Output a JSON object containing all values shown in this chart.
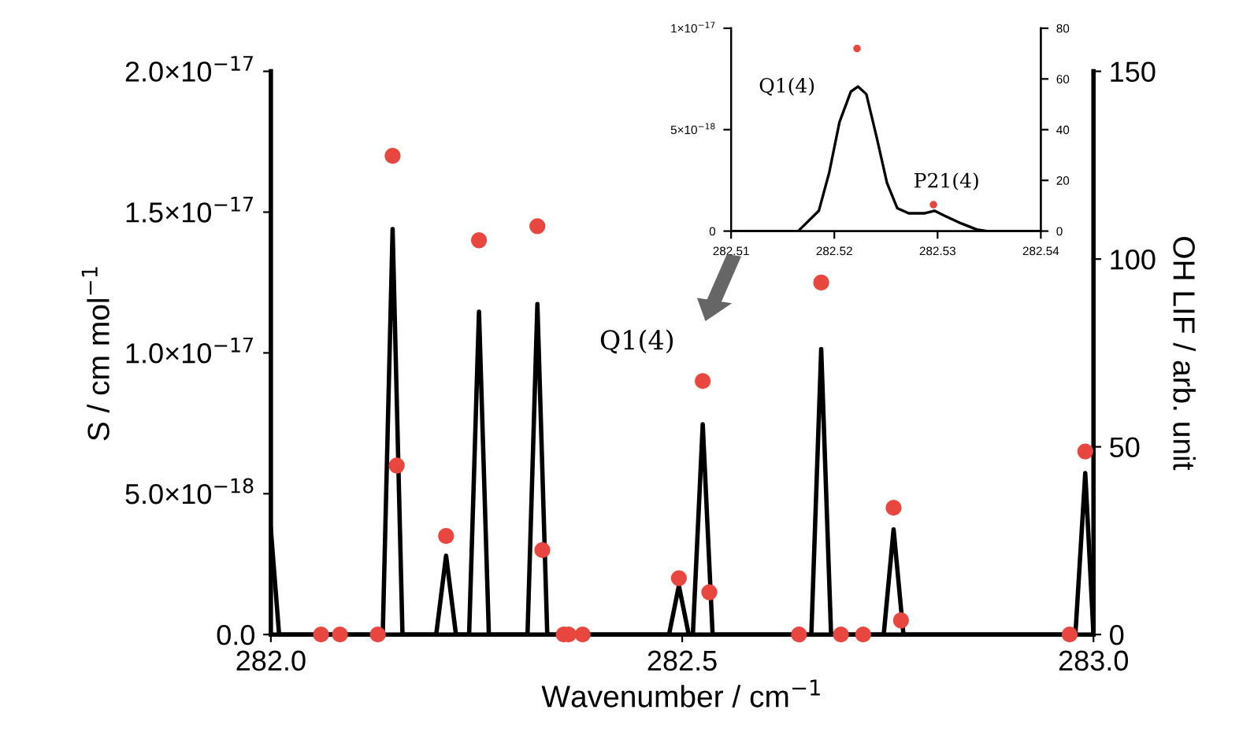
{
  "chart_data": [
    {
      "type": "scatter",
      "xlabel": "Wavenumber / cm$^{−1}$",
      "ylabel": "S / cm mol$^{−1}$",
      "y2label": "OH LIF / arb. unit",
      "xlim": [
        282.0,
        283.0
      ],
      "xticks": [
        {
          "value": 282.0,
          "label": "282.0"
        },
        {
          "value": 282.5,
          "label": "282.5"
        },
        {
          "value": 283.0,
          "label": "283.0"
        }
      ],
      "ylim": [
        0,
        2e-17
      ],
      "yticks": [
        {
          "value": 0,
          "label": "0.0"
        },
        {
          "value": 5e-18,
          "label": "5.0×10$^{−18}$"
        },
        {
          "value": 1e-17,
          "label": "1.0×10$^{−17}$"
        },
        {
          "value": 1.5e-17,
          "label": "1.5×10$^{−17}$"
        },
        {
          "value": 2e-17,
          "label": "2.0×10$^{−17}$"
        }
      ],
      "y2lim": [
        0,
        150
      ],
      "y2ticks": [
        0,
        50,
        100,
        150
      ],
      "grid": false,
      "legend": false,
      "series": [
        {
          "color": "#e8473f",
          "marker": "circle",
          "x": [
            282.061,
            282.084,
            282.13,
            282.148,
            282.153,
            282.213,
            282.253,
            282.324,
            282.33,
            282.356,
            282.362,
            282.379,
            282.496,
            282.525,
            282.533,
            282.642,
            282.669,
            282.693,
            282.72,
            282.757,
            282.766,
            282.971,
            282.99
          ],
          "values": [
            0,
            0,
            0,
            1.7e-17,
            6e-18,
            3.5e-18,
            1.4e-17,
            1.45e-17,
            3e-18,
            0,
            0,
            0,
            2e-18,
            9e-18,
            1.5e-18,
            0,
            1.25e-17,
            0,
            0,
            4.5e-18,
            5e-19,
            0,
            6.5e-18
          ]
        },
        {
          "type": "line",
          "axis": "y2",
          "color": "#000000",
          "marker": "none",
          "line_style": "solid",
          "x": [
            282.0,
            282.01,
            282.136,
            282.148,
            282.16,
            282.201,
            282.213,
            282.225,
            282.241,
            282.253,
            282.265,
            282.312,
            282.324,
            282.336,
            282.484,
            282.496,
            282.508,
            282.513,
            282.525,
            282.537,
            282.657,
            282.669,
            282.681,
            282.745,
            282.757,
            282.769,
            282.978,
            282.99,
            283.0
          ],
          "values": [
            28,
            0,
            0,
            108,
            0,
            0,
            21,
            0,
            0,
            86,
            0,
            0,
            88,
            0,
            0,
            13,
            0,
            0,
            56,
            0,
            0,
            76,
            0,
            0,
            28,
            0,
            0,
            43,
            0
          ]
        }
      ],
      "annotations": [
        {
          "text": "Q1(4)",
          "x": 282.525,
          "y": 9e-18
        }
      ]
    },
    {
      "type": "scatter",
      "xlim": [
        282.51,
        282.54
      ],
      "xticks": [
        282.51,
        282.52,
        282.53,
        282.54
      ],
      "ylim": [
        0,
        1e-17
      ],
      "yticks": [
        {
          "value": 0,
          "label": "0"
        },
        {
          "value": 5e-18,
          "label": "5×10$^{−18}$"
        },
        {
          "value": 1e-17,
          "label": "1×10$^{−17}$"
        }
      ],
      "y2lim": [
        0,
        80
      ],
      "y2ticks": [
        0,
        20,
        40,
        60,
        80
      ],
      "grid": false,
      "legend": false,
      "series": [
        {
          "type": "line",
          "axis": "y2",
          "color": "#000000",
          "marker": "none",
          "line_style": "solid",
          "x": [
            282.51,
            282.5165,
            282.5185,
            282.5195,
            282.5205,
            282.5216,
            282.5223,
            282.5231,
            282.5241,
            282.5251,
            282.5261,
            282.5272,
            282.5287,
            282.5297,
            282.5307,
            282.5323,
            282.5338,
            282.5348,
            282.54
          ],
          "values": [
            0,
            0,
            8,
            23,
            43,
            55,
            57,
            54,
            37,
            19,
            9,
            7,
            7,
            8,
            6,
            3,
            0.6,
            0,
            0
          ]
        },
        {
          "color": "#e8473f",
          "marker": "circle",
          "x": [
            282.5222,
            282.5296
          ],
          "values": [
            9e-18,
            1.3e-18
          ]
        }
      ],
      "annotations": [
        {
          "text": "Q1(4)",
          "x": 282.5222,
          "y": 9e-18
        },
        {
          "text": "P21(4)",
          "x": 282.5296,
          "y": 1.3e-18
        }
      ]
    }
  ]
}
